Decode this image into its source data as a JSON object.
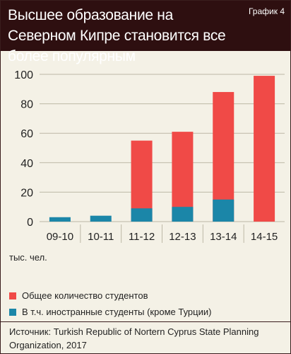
{
  "header": {
    "title": "Высшее образование на Северном Кипре становится все более популярным",
    "badge": "График 4"
  },
  "unit_label": "тыс. чел.",
  "legend": [
    {
      "label": "Общее количество студентов",
      "color": "#f04a47"
    },
    {
      "label": "В т.ч. иностранные студенты (кроме Турции)",
      "color": "#1b86a8"
    }
  ],
  "source": "Источник: Turkish Republic of Nortern Cyprus State Planning Organization, 2017",
  "chart_data": {
    "type": "bar",
    "categories": [
      "09-10",
      "10-11",
      "11-12",
      "12-13",
      "13-14",
      "14-15"
    ],
    "series": [
      {
        "name": "Общее количество студентов",
        "values": [
          null,
          null,
          55,
          61,
          88,
          99
        ],
        "color": "#f04a47"
      },
      {
        "name": "В т.ч. иностранные студенты (кроме Турции)",
        "values": [
          3,
          4,
          9,
          10,
          15,
          null
        ],
        "color": "#1b86a8"
      }
    ],
    "ylim": [
      0,
      100
    ],
    "yticks": [
      0,
      20,
      40,
      60,
      80,
      100
    ],
    "grid": true,
    "legend_position": "bottom"
  }
}
